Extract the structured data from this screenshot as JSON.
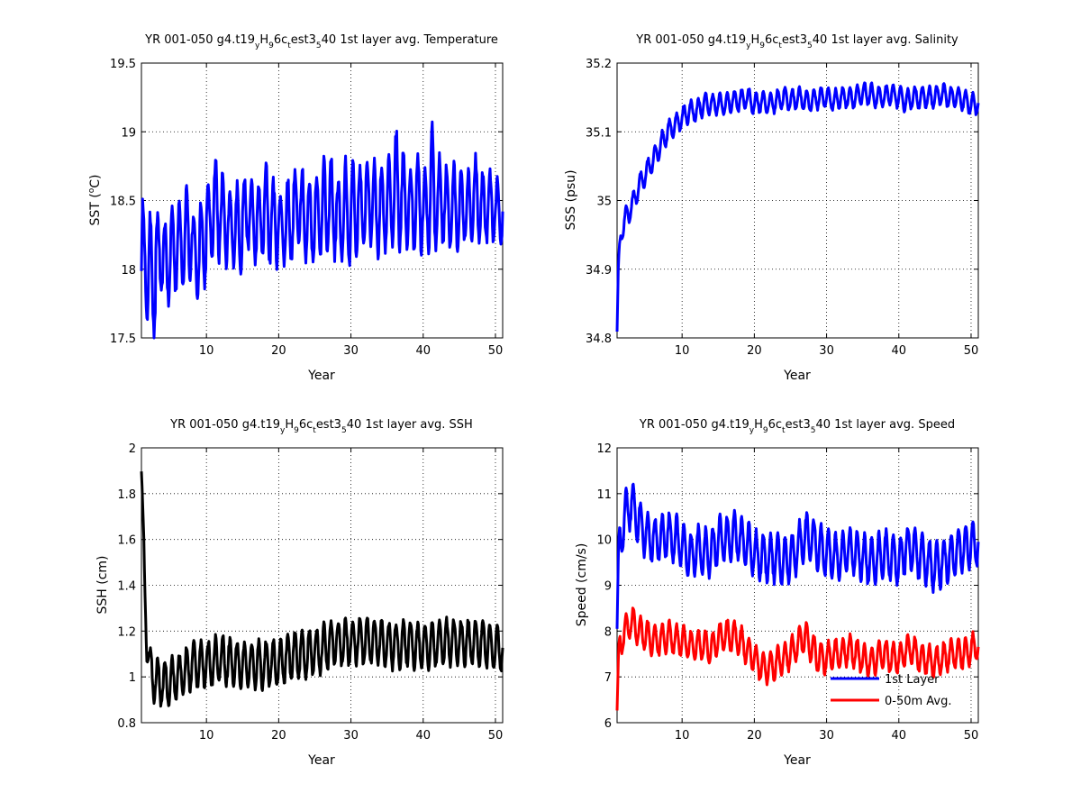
{
  "chart_data": [
    {
      "type": "line",
      "title": "YR 001-050 g4.t19_yH_96c_test3_540 1st layer avg. Temperature",
      "xlabel": "Year",
      "ylabel": "SST (°C)",
      "xlim": [
        1,
        51
      ],
      "ylim": [
        17.5,
        19.5
      ],
      "xticks": [
        10,
        20,
        30,
        40,
        50
      ],
      "yticks": [
        17.5,
        18,
        18.5,
        19,
        19.5
      ],
      "grid": true,
      "series": [
        {
          "name": "",
          "color": "#0000ff",
          "seasonal_mean": [
            18.05,
            17.95,
            18.1,
            18.05,
            18.15,
            18.2,
            18.25,
            18.1,
            18.2,
            18.35,
            18.45,
            18.35,
            18.3,
            18.3,
            18.4,
            18.35,
            18.35,
            18.4,
            18.35,
            18.3,
            18.35,
            18.45,
            18.4,
            18.35,
            18.4,
            18.45,
            18.45,
            18.35,
            18.4,
            18.45,
            18.45,
            18.5,
            18.45,
            18.45,
            18.5,
            18.55,
            18.5,
            18.45,
            18.5,
            18.45,
            18.55,
            18.5,
            18.45,
            18.45,
            18.45,
            18.45,
            18.5,
            18.45,
            18.45,
            18.4
          ],
          "annual_range": [
            0.9,
            0.9,
            0.6,
            0.6,
            0.6,
            0.6,
            0.7,
            0.6,
            0.6,
            0.5,
            0.7,
            0.7,
            0.5,
            0.6,
            0.5,
            0.6,
            0.5,
            0.7,
            0.6,
            0.5,
            0.6,
            0.5,
            0.7,
            0.6,
            0.6,
            0.7,
            0.7,
            0.6,
            0.8,
            0.7,
            0.6,
            0.6,
            0.7,
            0.6,
            0.7,
            0.9,
            0.7,
            0.6,
            0.7,
            0.6,
            0.9,
            0.6,
            0.6,
            0.6,
            0.5,
            0.5,
            0.6,
            0.5,
            0.5,
            0.5
          ]
        }
      ]
    },
    {
      "type": "line",
      "title": "YR 001-050 g4.t19_yH_96c_test3_540 1st layer avg. Salinity",
      "xlabel": "Year",
      "ylabel": "SSS (psu)",
      "xlim": [
        1,
        51
      ],
      "ylim": [
        34.8,
        35.2
      ],
      "xticks": [
        10,
        20,
        30,
        40,
        50
      ],
      "yticks": [
        34.8,
        34.9,
        35,
        35.1,
        35.2
      ],
      "grid": true,
      "series": [
        {
          "name": "",
          "color": "#0000ff",
          "x": [
            1,
            1.2,
            1.5,
            2,
            3,
            4,
            5,
            6,
            7,
            8,
            9,
            10,
            11,
            12,
            13,
            14,
            15,
            16,
            17,
            18,
            19,
            20,
            21,
            22,
            23,
            24,
            25,
            26,
            27,
            28,
            29,
            30,
            31,
            32,
            33,
            34,
            35,
            36,
            37,
            38,
            39,
            40,
            41,
            42,
            43,
            44,
            45,
            46,
            47,
            48,
            49,
            50,
            51
          ],
          "y": [
            34.81,
            34.9,
            34.95,
            34.97,
            34.99,
            35.02,
            35.04,
            35.06,
            35.08,
            35.1,
            35.11,
            35.12,
            35.13,
            35.13,
            35.14,
            35.14,
            35.14,
            35.14,
            35.145,
            35.145,
            35.15,
            35.14,
            35.145,
            35.14,
            35.145,
            35.15,
            35.145,
            35.15,
            35.145,
            35.145,
            35.15,
            35.15,
            35.145,
            35.15,
            35.15,
            35.15,
            35.155,
            35.155,
            35.15,
            35.15,
            35.155,
            35.15,
            35.145,
            35.15,
            35.15,
            35.15,
            35.15,
            35.155,
            35.15,
            35.15,
            35.145,
            35.14,
            35.14
          ],
          "annual_range": 0.03
        }
      ]
    },
    {
      "type": "line",
      "title": "YR 001-050 g4.t19_yH_96c_test3_540 1st layer avg. SSH",
      "xlabel": "Year",
      "ylabel": "SSH (cm)",
      "xlim": [
        1,
        51
      ],
      "ylim": [
        0.8,
        2
      ],
      "xticks": [
        10,
        20,
        30,
        40,
        50
      ],
      "yticks": [
        0.8,
        1,
        1.2,
        1.4,
        1.6,
        1.8,
        2
      ],
      "grid": true,
      "series": [
        {
          "name": "",
          "color": "#000000",
          "x": [
            1,
            1.15,
            1.3,
            1.5,
            1.8,
            2.2,
            3,
            4,
            5,
            6,
            7,
            8,
            9,
            10,
            11,
            12,
            13,
            14,
            15,
            16,
            17,
            18,
            19,
            20,
            21,
            22,
            23,
            24,
            25,
            26,
            27,
            28,
            29,
            30,
            31,
            32,
            33,
            34,
            35,
            36,
            37,
            38,
            39,
            40,
            41,
            42,
            43,
            44,
            45,
            46,
            47,
            48,
            49,
            50,
            51
          ],
          "y": [
            1.9,
            1.7,
            1.55,
            1.35,
            1.15,
            1.02,
            0.98,
            0.97,
            0.98,
            1.0,
            1.02,
            1.05,
            1.06,
            1.05,
            1.07,
            1.08,
            1.07,
            1.06,
            1.05,
            1.05,
            1.06,
            1.05,
            1.06,
            1.06,
            1.08,
            1.09,
            1.1,
            1.1,
            1.11,
            1.12,
            1.14,
            1.15,
            1.15,
            1.15,
            1.16,
            1.16,
            1.16,
            1.15,
            1.14,
            1.14,
            1.14,
            1.15,
            1.14,
            1.13,
            1.14,
            1.15,
            1.15,
            1.15,
            1.15,
            1.15,
            1.15,
            1.15,
            1.14,
            1.12,
            1.12
          ],
          "annual_range": 0.2
        }
      ]
    },
    {
      "type": "line",
      "title": "YR 001-050 g4.t19_yH_96c_test3_540 1st layer avg. Speed",
      "xlabel": "Year",
      "ylabel": "Speed (cm/s)",
      "xlim": [
        1,
        51
      ],
      "ylim": [
        6,
        12
      ],
      "xticks": [
        10,
        20,
        30,
        40,
        50
      ],
      "yticks": [
        6,
        7,
        8,
        9,
        10,
        11,
        12
      ],
      "grid": true,
      "legend": "lower-right",
      "series": [
        {
          "name": "1st Layer",
          "color": "#0000ff",
          "x": [
            1,
            1.3,
            2,
            3,
            4,
            5,
            6,
            7,
            8,
            9,
            10,
            11,
            12,
            13,
            14,
            15,
            16,
            17,
            18,
            19,
            20,
            21,
            22,
            23,
            24,
            25,
            26,
            27,
            28,
            29,
            30,
            31,
            32,
            33,
            34,
            35,
            36,
            37,
            38,
            39,
            40,
            41,
            42,
            43,
            44,
            45,
            46,
            47,
            48,
            49,
            50,
            51
          ],
          "y": [
            8.0,
            9.8,
            10.5,
            10.8,
            10.4,
            10.1,
            10.0,
            10.0,
            10.1,
            10.0,
            9.9,
            9.6,
            9.8,
            9.7,
            9.7,
            10.0,
            10.0,
            10.1,
            10.0,
            9.9,
            9.7,
            9.6,
            9.6,
            9.6,
            9.5,
            9.6,
            9.8,
            10.1,
            10.0,
            9.8,
            9.7,
            9.6,
            9.6,
            9.8,
            9.7,
            9.6,
            9.5,
            9.6,
            9.7,
            9.6,
            9.5,
            9.8,
            9.8,
            9.6,
            9.5,
            9.4,
            9.5,
            9.6,
            9.7,
            9.8,
            9.9,
            9.9
          ],
          "annual_range": 1.0
        },
        {
          "name": "0-50m Avg.",
          "color": "#ff0000",
          "x": [
            1,
            1.3,
            2,
            3,
            4,
            5,
            6,
            7,
            8,
            9,
            10,
            11,
            12,
            13,
            14,
            15,
            16,
            17,
            18,
            19,
            20,
            21,
            22,
            23,
            24,
            25,
            26,
            27,
            28,
            29,
            30,
            31,
            32,
            33,
            34,
            35,
            36,
            37,
            38,
            39,
            40,
            41,
            42,
            43,
            44,
            45,
            46,
            47,
            48,
            49,
            50,
            51
          ],
          "y": [
            6.3,
            7.6,
            8.0,
            8.2,
            8.0,
            7.9,
            7.8,
            7.8,
            7.9,
            7.8,
            7.8,
            7.7,
            7.7,
            7.7,
            7.6,
            7.8,
            7.9,
            7.9,
            7.8,
            7.6,
            7.4,
            7.2,
            7.2,
            7.3,
            7.4,
            7.5,
            7.7,
            7.9,
            7.6,
            7.4,
            7.4,
            7.5,
            7.5,
            7.6,
            7.5,
            7.4,
            7.3,
            7.4,
            7.5,
            7.4,
            7.4,
            7.6,
            7.6,
            7.4,
            7.4,
            7.3,
            7.4,
            7.5,
            7.5,
            7.5,
            7.6,
            7.7
          ],
          "annual_range": 0.65
        }
      ]
    }
  ]
}
